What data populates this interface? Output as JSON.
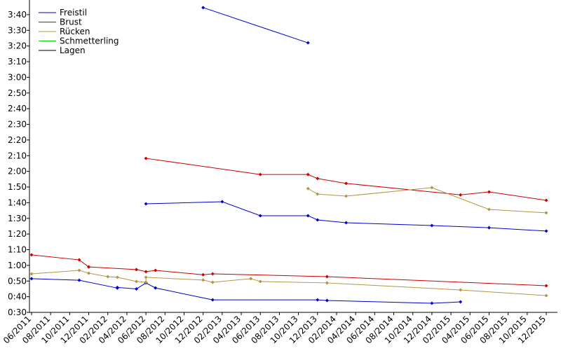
{
  "chart_data": {
    "type": "line",
    "xlim": [
      "06/2011",
      "12/2015"
    ],
    "xticks": [
      "06/2011",
      "08/2011",
      "10/2011",
      "12/2011",
      "02/2012",
      "04/2012",
      "06/2012",
      "08/2012",
      "10/2012",
      "12/2012",
      "02/2013",
      "04/2013",
      "06/2013",
      "08/2013",
      "10/2013",
      "12/2013",
      "02/2014",
      "04/2014",
      "06/2014",
      "08/2014",
      "10/2014",
      "12/2014",
      "02/2015",
      "04/2015",
      "06/2015",
      "08/2015",
      "10/2015",
      "12/2015"
    ],
    "ylim": [
      30,
      228
    ],
    "yticks": [
      {
        "value": 30,
        "label": "0:30"
      },
      {
        "value": 40,
        "label": "0:40"
      },
      {
        "value": 50,
        "label": "0:50"
      },
      {
        "value": 60,
        "label": "1:00"
      },
      {
        "value": 70,
        "label": "1:10"
      },
      {
        "value": 80,
        "label": "1:20"
      },
      {
        "value": 90,
        "label": "1:30"
      },
      {
        "value": 100,
        "label": "1:40"
      },
      {
        "value": 110,
        "label": "1:50"
      },
      {
        "value": 120,
        "label": "2:00"
      },
      {
        "value": 130,
        "label": "2:10"
      },
      {
        "value": 140,
        "label": "2:20"
      },
      {
        "value": 150,
        "label": "2:30"
      },
      {
        "value": 160,
        "label": "2:40"
      },
      {
        "value": 170,
        "label": "2:50"
      },
      {
        "value": 180,
        "label": "3:00"
      },
      {
        "value": 190,
        "label": "3:10"
      },
      {
        "value": 200,
        "label": "3:20"
      },
      {
        "value": 210,
        "label": "3:30"
      },
      {
        "value": 220,
        "label": "3:40"
      }
    ],
    "legend": "top-left",
    "series": [
      {
        "name": "Freistil",
        "color": "#0000cc",
        "x": [
          "06/2011",
          "11/2011",
          "03/2012",
          "03/2012",
          "05/2012",
          "06/2012",
          "07/2012",
          "01/2013",
          "12/2013",
          "01/2014",
          "12/2014",
          "03/2015",
          null,
          "06/2012",
          "02/2013",
          "06/2013",
          "11/2013",
          "12/2013",
          "03/2014",
          "12/2014",
          "06/2015",
          "12/2015",
          null,
          "12/2012",
          "11/2013"
        ],
        "values": [
          51.5,
          50.5,
          45.5,
          45.9,
          45,
          48.8,
          45.6,
          38,
          38,
          37.6,
          35.8,
          36.7,
          null,
          99.3,
          100.6,
          91.7,
          91.7,
          89,
          87.2,
          85.4,
          84,
          81.9,
          null,
          224.5,
          202
        ]
      },
      {
        "name": "Brust",
        "color": "#cc0000",
        "x": [
          "06/2011",
          "11/2011",
          "12/2011",
          "12/2011",
          "05/2012",
          "06/2012",
          "07/2012",
          "12/2012",
          "01/2013",
          "01/2014",
          "12/2015",
          null,
          "06/2012",
          "06/2013",
          "11/2013",
          "12/2013",
          "03/2014",
          "03/2015",
          "06/2015",
          "12/2015"
        ],
        "values": [
          66.7,
          63.5,
          59,
          59,
          57.3,
          56,
          56.8,
          54,
          54.6,
          52.8,
          47,
          null,
          128.3,
          118,
          118,
          115.4,
          112.3,
          105,
          106.9,
          101.5
        ]
      },
      {
        "name": "Rücken",
        "color": "#b09548",
        "x": [
          "06/2011",
          "11/2011",
          "12/2011",
          "02/2012",
          "03/2012",
          "05/2012",
          "06/2012",
          "06/2012",
          "12/2012",
          "01/2013",
          "05/2013",
          "06/2013",
          "01/2014",
          "03/2015",
          "12/2015",
          null,
          "11/2013",
          "12/2013",
          "03/2014",
          "12/2014",
          "06/2015",
          "12/2015"
        ],
        "values": [
          54.6,
          56.8,
          55,
          52.8,
          52.4,
          49.7,
          49.2,
          52.4,
          50.6,
          49.2,
          51.5,
          49.7,
          48.8,
          44.3,
          40.7,
          null,
          109,
          105.5,
          104.2,
          109.6,
          95.7,
          93.5
        ]
      },
      {
        "name": "Schmetterling",
        "color": "#00cc00",
        "x": [],
        "values": []
      },
      {
        "name": "Lagen",
        "color": "#000000",
        "x": [],
        "values": []
      }
    ]
  }
}
